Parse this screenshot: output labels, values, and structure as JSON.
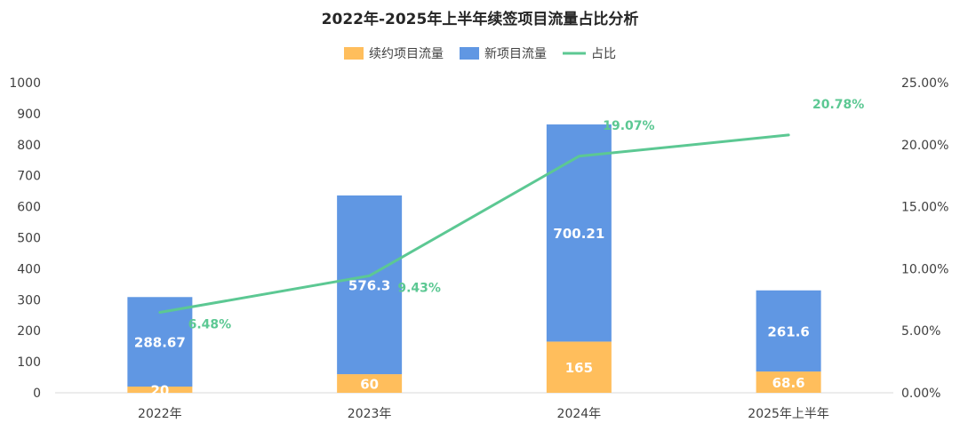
{
  "chart_data": {
    "type": "bar",
    "title": "2022年-2025年上半年续签项目流量占比分析",
    "categories": [
      "2022年",
      "2023年",
      "2024年",
      "2025年上半年"
    ],
    "series": [
      {
        "name": "续约项目流量",
        "kind": "bar",
        "axis": "left",
        "color": "#FFBE5C",
        "values": [
          20,
          60,
          165,
          68.6
        ],
        "labels": [
          "20",
          "60",
          "165",
          "68.6"
        ]
      },
      {
        "name": "新项目流量",
        "kind": "bar",
        "axis": "left",
        "color": "#6097E3",
        "values": [
          288.67,
          576.3,
          700.21,
          261.6
        ],
        "labels": [
          "288.67",
          "576.3",
          "700.21",
          "261.6"
        ]
      },
      {
        "name": "占比",
        "kind": "line",
        "axis": "right",
        "color": "#5CC893",
        "values": [
          6.48,
          9.43,
          19.07,
          20.78
        ],
        "labels": [
          "6.48%",
          "9.43%",
          "19.07%",
          "20.78%"
        ]
      }
    ],
    "stacked": true,
    "ylim_left": [
      0,
      1000
    ],
    "yticks_left": [
      "0",
      "100",
      "200",
      "300",
      "400",
      "500",
      "600",
      "700",
      "800",
      "900",
      "1000"
    ],
    "ylim_right": [
      0,
      25
    ],
    "yticks_right": [
      "0.00%",
      "5.00%",
      "10.00%",
      "15.00%",
      "20.00%",
      "25.00%"
    ],
    "legend_position": "top-center",
    "grid": false
  }
}
